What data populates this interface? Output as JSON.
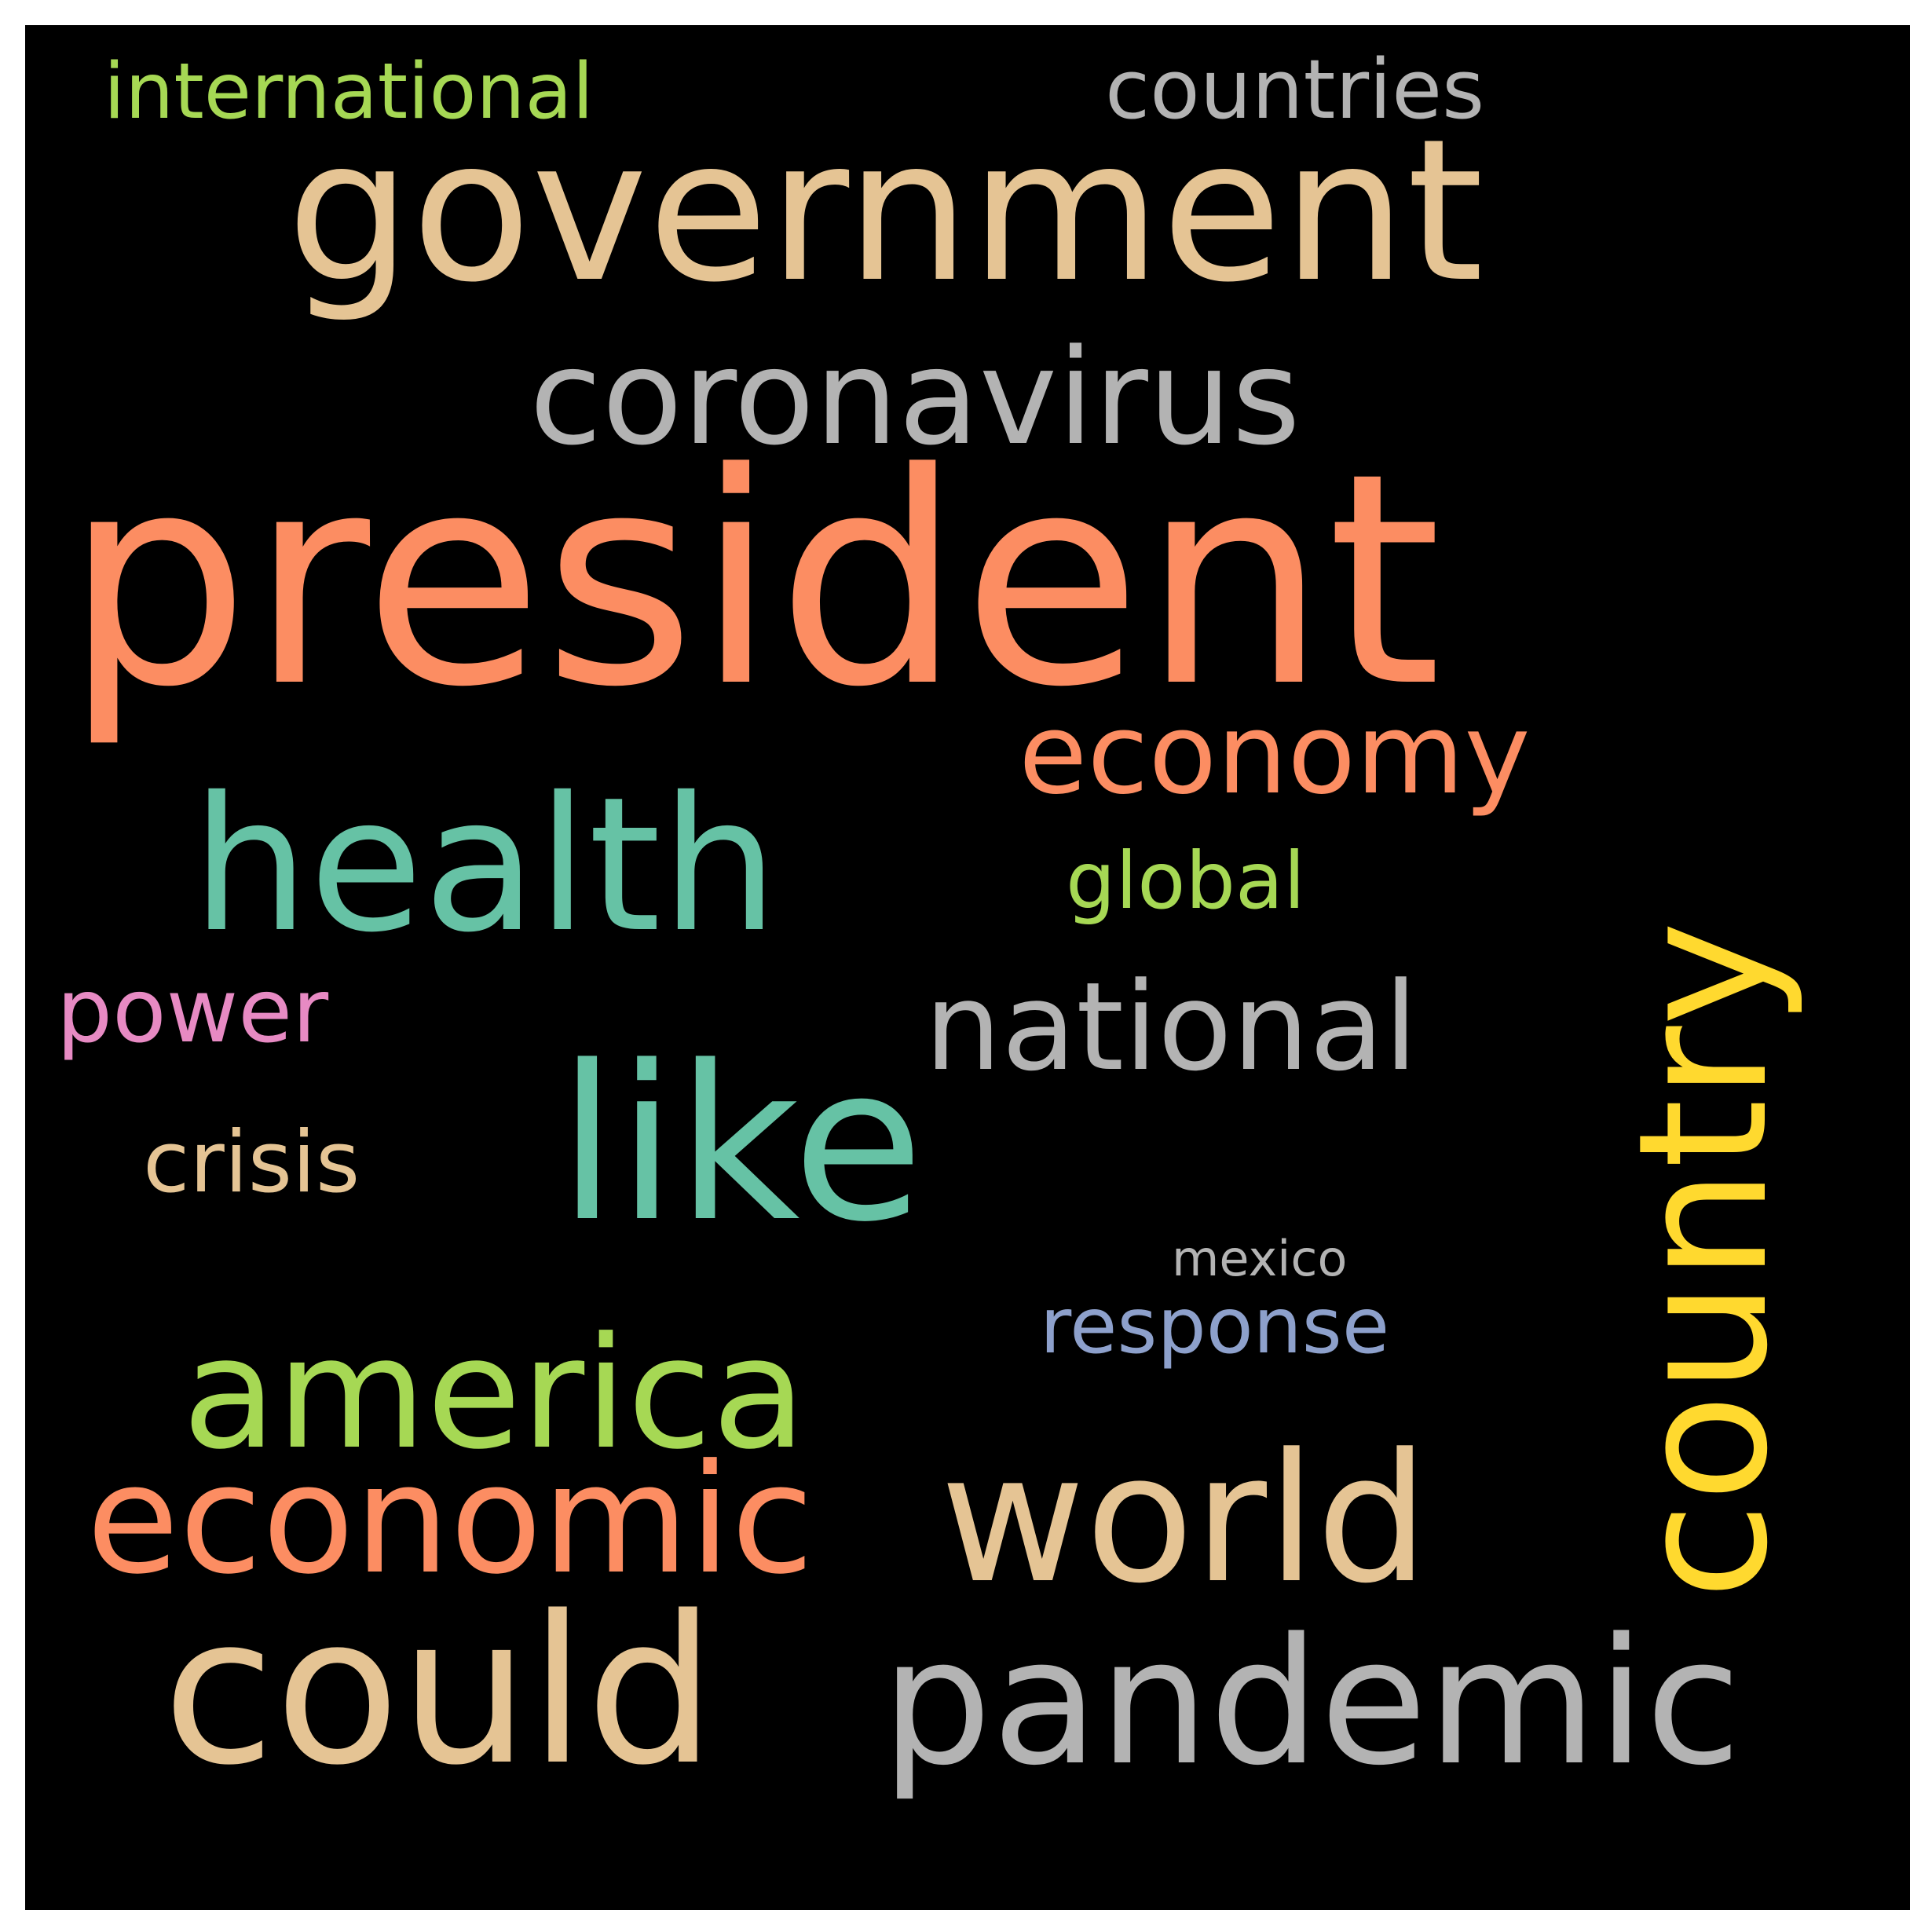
{
  "background": "#000000",
  "words": [
    {
      "text": "president",
      "color": "#fc8d62",
      "weight": 1.0
    },
    {
      "text": "government",
      "color": "#e5c494",
      "weight": 0.7
    },
    {
      "text": "could",
      "color": "#e5c494",
      "weight": 0.68
    },
    {
      "text": "like",
      "color": "#66c2a5",
      "weight": 0.62
    },
    {
      "text": "pandemic",
      "color": "#b3b3b3",
      "weight": 0.62
    },
    {
      "text": "health",
      "color": "#66c2a5",
      "weight": 0.6
    },
    {
      "text": "country",
      "color": "#ffd92f",
      "weight": 0.58
    },
    {
      "text": "world",
      "color": "#e5c494",
      "weight": 0.58
    },
    {
      "text": "america",
      "color": "#a6d854",
      "weight": 0.52
    },
    {
      "text": "economic",
      "color": "#fc8d62",
      "weight": 0.5
    },
    {
      "text": "coronavirus",
      "color": "#b3b3b3",
      "weight": 0.44
    },
    {
      "text": "national",
      "color": "#b3b3b3",
      "weight": 0.4
    },
    {
      "text": "economy",
      "color": "#fc8d62",
      "weight": 0.36
    },
    {
      "text": "power",
      "color": "#e78ac3",
      "weight": 0.3
    },
    {
      "text": "crisis",
      "color": "#e5c494",
      "weight": 0.26
    },
    {
      "text": "countries",
      "color": "#b3b3b3",
      "weight": 0.26
    },
    {
      "text": "international",
      "color": "#a6d854",
      "weight": 0.26
    },
    {
      "text": "global",
      "color": "#a6d854",
      "weight": 0.24
    },
    {
      "text": "response",
      "color": "#8da0cb",
      "weight": 0.24
    },
    {
      "text": "mexico",
      "color": "#b3b3b3",
      "weight": 0.16
    }
  ]
}
